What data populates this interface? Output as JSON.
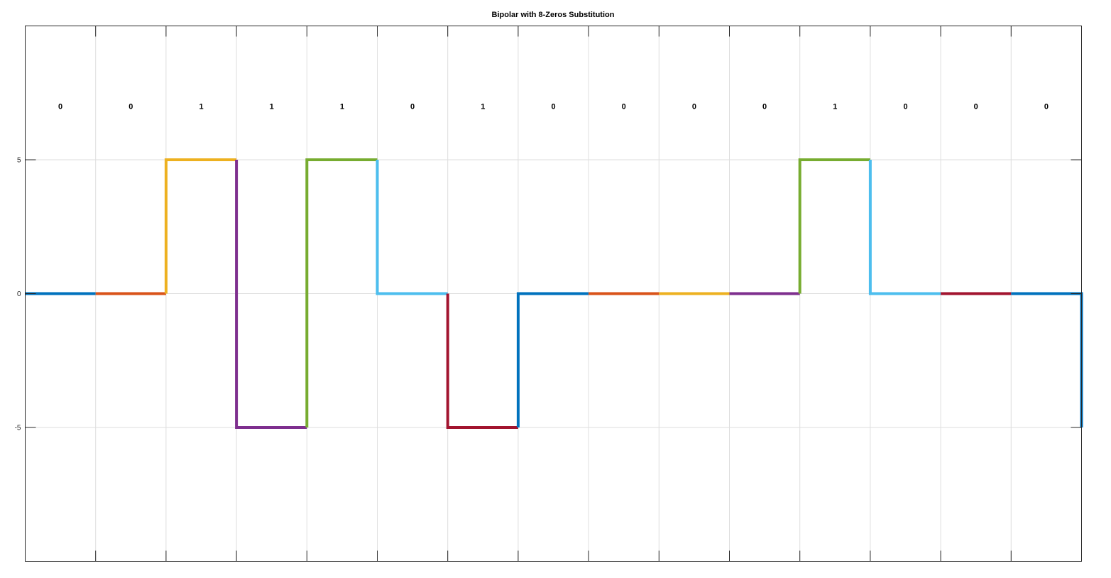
{
  "chart_data": {
    "type": "line",
    "title": "Bipolar with 8-Zeros Substitution",
    "xlabel": "",
    "ylabel": "",
    "xlim": [
      0,
      15
    ],
    "ylim": [
      -10,
      10
    ],
    "yticks": [
      -5,
      0,
      5
    ],
    "ytick_labels": [
      "-5",
      "0",
      "5"
    ],
    "xticks": [
      0,
      1,
      2,
      3,
      4,
      5,
      6,
      7,
      8,
      9,
      10,
      11,
      12,
      13,
      14,
      15
    ],
    "grid": true,
    "bits": [
      "0",
      "0",
      "1",
      "1",
      "1",
      "0",
      "1",
      "0",
      "0",
      "0",
      "0",
      "1",
      "0",
      "0",
      "0"
    ],
    "bit_label_y": 7,
    "levels": [
      0,
      0,
      5,
      -5,
      5,
      0,
      -5,
      0,
      0,
      0,
      0,
      5,
      0,
      0,
      0
    ],
    "final_level": -5,
    "colors": [
      "#0072BD",
      "#D95319",
      "#EDB120",
      "#7E2F8E",
      "#77AC30",
      "#4DBEEE",
      "#A2142F"
    ]
  }
}
